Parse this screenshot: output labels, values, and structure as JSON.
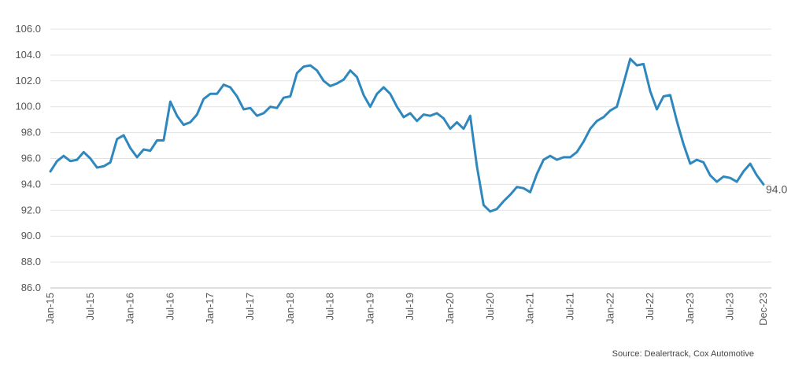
{
  "chart_data": {
    "type": "line",
    "title": "",
    "xlabel": "",
    "ylabel": "",
    "ylim": [
      86,
      106
    ],
    "yticks": [
      "86.0",
      "88.0",
      "90.0",
      "92.0",
      "94.0",
      "96.0",
      "98.0",
      "100.0",
      "102.0",
      "104.0",
      "106.0"
    ],
    "grid": true,
    "x_start": "Jan-15",
    "x_tick_labels": [
      "Jan-15",
      "Jul-15",
      "Jan-16",
      "Jul-16",
      "Jan-17",
      "Jul-17",
      "Jan-18",
      "Jul-18",
      "Jan-19",
      "Jul-19",
      "Jan-20",
      "Jul-20",
      "Jan-21",
      "Jul-21",
      "Jan-22",
      "Jul-22",
      "Jan-23",
      "Jul-23",
      "Dec-23"
    ],
    "series": [
      {
        "name": "",
        "color": "#2e88be",
        "values": [
          95.0,
          95.8,
          96.2,
          95.8,
          95.9,
          96.5,
          96.0,
          95.3,
          95.4,
          95.7,
          97.5,
          97.8,
          96.8,
          96.1,
          96.7,
          96.6,
          97.4,
          97.4,
          100.4,
          99.3,
          98.6,
          98.8,
          99.4,
          100.6,
          101.0,
          101.0,
          101.7,
          101.5,
          100.8,
          99.8,
          99.9,
          99.3,
          99.5,
          100.0,
          99.9,
          100.7,
          100.8,
          102.6,
          103.1,
          103.2,
          102.8,
          102.0,
          101.6,
          101.8,
          102.1,
          102.8,
          102.3,
          100.9,
          100.0,
          101.0,
          101.5,
          101.0,
          100.0,
          99.2,
          99.5,
          98.9,
          99.4,
          99.3,
          99.5,
          99.1,
          98.3,
          98.8,
          98.3,
          99.3,
          95.4,
          92.4,
          91.9,
          92.1,
          92.7,
          93.2,
          93.8,
          93.7,
          93.4,
          94.8,
          95.9,
          96.2,
          95.9,
          96.1,
          96.1,
          96.5,
          97.3,
          98.3,
          98.9,
          99.2,
          99.7,
          100.0,
          101.8,
          103.7,
          103.2,
          103.3,
          101.2,
          99.8,
          100.8,
          100.9,
          98.9,
          97.1,
          95.6,
          95.9,
          95.7,
          94.7,
          94.2,
          94.6,
          94.5,
          94.2,
          95.0,
          95.6,
          94.7,
          94.0
        ]
      }
    ],
    "end_label": "94.0"
  },
  "source_text": "Source: Dealertrack, Cox Automotive"
}
